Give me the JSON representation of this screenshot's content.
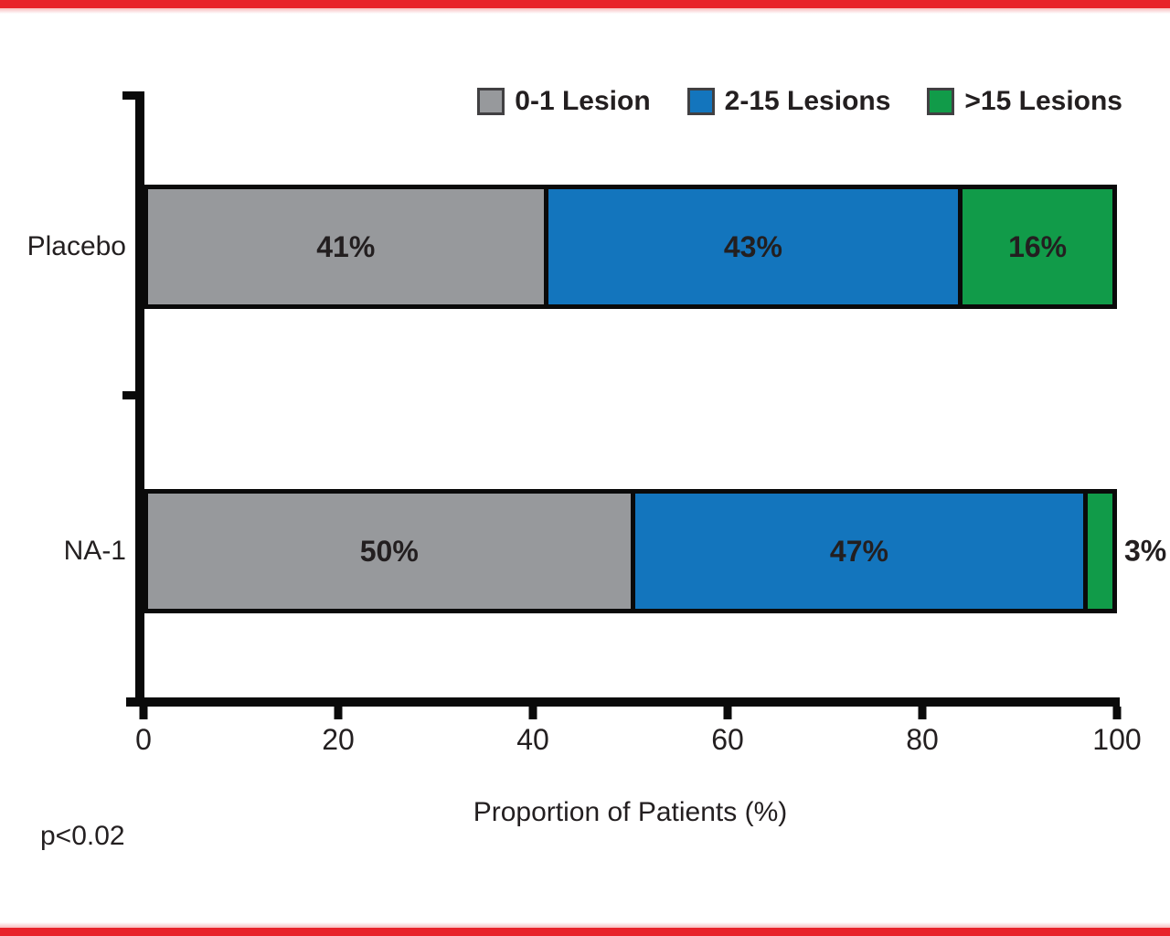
{
  "frame": {
    "border_color": "#e8222a",
    "background": "#ffffff"
  },
  "colors": {
    "gray_series": "#97999c",
    "blue_series": "#1375bd",
    "green_series": "#119b49",
    "axis": "#0a0a0a",
    "text": "#231f20"
  },
  "chart_data": {
    "type": "bar",
    "orientation": "horizontal",
    "stacked": true,
    "categories": [
      "Placebo",
      "NA-1"
    ],
    "series": [
      {
        "name": "0-1 Lesion",
        "color": "#97999c",
        "values": [
          41,
          50
        ]
      },
      {
        "name": "2-15 Lesions",
        "color": "#1375bd",
        "values": [
          43,
          47
        ]
      },
      {
        "name": ">15 Lesions",
        "color": "#119b49",
        "values": [
          16,
          3
        ]
      }
    ],
    "value_labels": [
      [
        "41%",
        "43%",
        "16%"
      ],
      [
        "50%",
        "47%",
        "3%"
      ]
    ],
    "title": "",
    "xlabel": "Proportion of Patients (%)",
    "ylabel": "",
    "xlim": [
      0,
      100
    ],
    "x_ticks": [
      "0",
      "20",
      "40",
      "60",
      "80",
      "100"
    ],
    "grid": false,
    "legend_position": "top",
    "annotation": "p<0.02"
  }
}
